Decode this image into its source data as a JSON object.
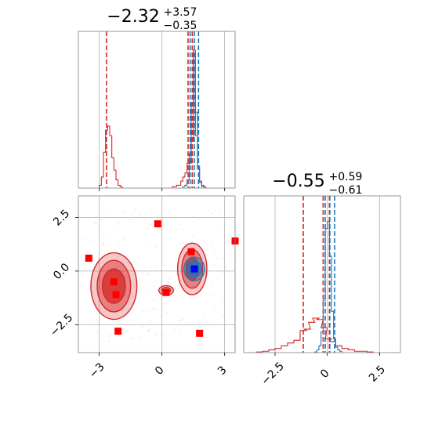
{
  "colors": {
    "prior": "#d62728",
    "posterior": "#1f77b4",
    "marker": "#ff0000",
    "truth": "#0000ff",
    "grid": "#b0b0b0",
    "frame": "#808080"
  },
  "chart_data": [
    {
      "panel": "hist-param-1",
      "type": "histogram",
      "title": {
        "value": "−2.32",
        "plus": "+3.57",
        "minus": "−0.35"
      },
      "xlim": [
        -4.0,
        3.5
      ],
      "x_ticks": [
        -3,
        0,
        3
      ],
      "series": [
        {
          "name": "",
          "color": "#d62728",
          "bins_x": [
            -2.95,
            -2.85,
            -2.75,
            -2.65,
            -2.55,
            -2.45,
            -2.35,
            -2.25,
            -2.15,
            -2.05,
            -1.95,
            0.55,
            0.65,
            0.75,
            0.85,
            0.95,
            1.05,
            1.15,
            1.25,
            1.35,
            1.45,
            1.55,
            1.65,
            1.75,
            1.85,
            1.95,
            2.05
          ],
          "counts": [
            0.02,
            0.08,
            0.26,
            0.42,
            0.45,
            0.38,
            0.22,
            0.13,
            0.06,
            0.02,
            0.01,
            0.01,
            0.01,
            0.02,
            0.02,
            0.05,
            0.08,
            0.11,
            0.18,
            0.25,
            0.34,
            1.0,
            0.38,
            0.14,
            0.05,
            0.02,
            0.01
          ],
          "quantiles": [
            -2.65,
            1.25,
            1.45
          ]
        },
        {
          "name": "",
          "color": "#1f77b4",
          "bins_x": [
            1.05,
            1.15,
            1.25,
            1.35,
            1.45,
            1.55,
            1.65,
            1.75,
            1.85,
            1.95
          ],
          "counts": [
            0.01,
            0.02,
            0.06,
            0.18,
            0.62,
            0.98,
            0.55,
            0.16,
            0.04,
            0.01
          ],
          "quantiles": [
            1.35,
            1.55,
            1.75
          ]
        }
      ]
    },
    {
      "panel": "hist-param-2",
      "type": "histogram",
      "title": {
        "value": "−0.55",
        "plus": "+0.59",
        "minus": "−0.61"
      },
      "xlim": [
        -4.0,
        3.5
      ],
      "x_ticks": [
        -2.5,
        0.0,
        2.5
      ],
      "series": [
        {
          "name": "",
          "color": "#d62728",
          "bins_x": [
            -3.25,
            -2.95,
            -2.65,
            -2.35,
            -2.05,
            -1.75,
            -1.45,
            -1.15,
            -0.95,
            -0.75,
            -0.55,
            -0.35,
            -0.15,
            0.05,
            0.25,
            0.55,
            0.85,
            1.15,
            1.45,
            1.75,
            2.05
          ],
          "counts": [
            0.005,
            0.01,
            0.02,
            0.03,
            0.05,
            0.07,
            0.09,
            0.16,
            0.17,
            0.22,
            0.25,
            0.24,
            0.18,
            0.1,
            0.08,
            0.05,
            0.03,
            0.02,
            0.01,
            0.01,
            0.005
          ],
          "quantiles": [
            -1.15,
            -0.2,
            0.1
          ]
        },
        {
          "name": "",
          "color": "#1f77b4",
          "bins_x": [
            -0.55,
            -0.45,
            -0.35,
            -0.25,
            -0.15,
            -0.05,
            0.05,
            0.15,
            0.25,
            0.35,
            0.45,
            0.55,
            0.65
          ],
          "counts": [
            0.005,
            0.02,
            0.05,
            0.15,
            0.38,
            0.9,
            0.95,
            0.7,
            0.3,
            0.1,
            0.04,
            0.02,
            0.01
          ],
          "quantiles": [
            -0.1,
            0.12,
            0.35
          ]
        }
      ]
    },
    {
      "panel": "scatter-2d",
      "type": "scatter",
      "xlim": [
        -4.0,
        3.5
      ],
      "ylim": [
        -3.8,
        3.5
      ],
      "x_ticks": [
        -3,
        0,
        3
      ],
      "y_ticks": [
        2.5,
        0.0,
        -2.5
      ],
      "y_tick_labels": [
        "2.5",
        "0.0",
        "−2.5"
      ],
      "markers": [
        {
          "x": -3.5,
          "y": 0.6
        },
        {
          "x": -0.2,
          "y": 2.2
        },
        {
          "x": 3.5,
          "y": 1.4
        },
        {
          "x": -2.3,
          "y": -0.5
        },
        {
          "x": -2.2,
          "y": -1.1
        },
        {
          "x": 1.4,
          "y": 0.9
        },
        {
          "x": 0.2,
          "y": -1.0
        },
        {
          "x": -2.1,
          "y": -2.8
        },
        {
          "x": 1.8,
          "y": -2.9
        }
      ],
      "truth": {
        "x": 1.55,
        "y": 0.1
      },
      "contours": [
        {
          "cx": -2.3,
          "cy": -0.7,
          "rx": [
            1.1,
            0.8,
            0.55
          ],
          "ry": [
            1.55,
            1.2,
            0.8
          ]
        },
        {
          "cx": 1.45,
          "cy": 0.1,
          "rx": [
            0.7,
            0.5,
            0.3
          ],
          "ry": [
            1.2,
            0.9,
            0.55
          ]
        },
        {
          "cx": 0.2,
          "cy": -0.9,
          "rx": [
            0.35,
            0.22,
            0.1
          ],
          "ry": [
            0.22,
            0.14,
            0.06
          ]
        }
      ],
      "posterior_contours": {
        "cx": 1.55,
        "cy": 0.1,
        "rx": [
          0.5,
          0.35,
          0.2
        ],
        "ry": [
          0.55,
          0.38,
          0.2
        ]
      }
    }
  ]
}
